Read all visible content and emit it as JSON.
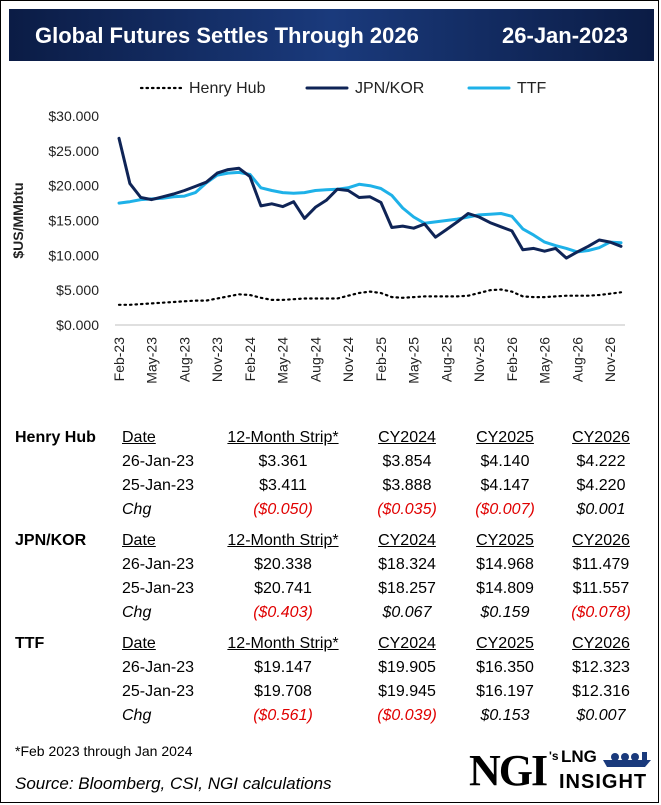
{
  "header": {
    "title": "Global Futures Settles Through 2026",
    "date": "26-Jan-2023"
  },
  "colors": {
    "henry_hub": "#000000",
    "jpn_kor": "#0f2456",
    "ttf": "#1eb1e8",
    "negative": "#e00000",
    "header_bg": "#0f2456"
  },
  "chart_data": {
    "type": "line",
    "title": "",
    "xlabel": "",
    "ylabel": "$US/MMbtu",
    "ylim": [
      0,
      30
    ],
    "y_ticks": [
      "$0.000",
      "$5.000",
      "$10.000",
      "$15.000",
      "$20.000",
      "$25.000",
      "$30.000"
    ],
    "x": [
      "Feb-23",
      "Mar-23",
      "Apr-23",
      "May-23",
      "Jun-23",
      "Jul-23",
      "Aug-23",
      "Sep-23",
      "Oct-23",
      "Nov-23",
      "Dec-23",
      "Jan-24",
      "Feb-24",
      "Mar-24",
      "Apr-24",
      "May-24",
      "Jun-24",
      "Jul-24",
      "Aug-24",
      "Sep-24",
      "Oct-24",
      "Nov-24",
      "Dec-24",
      "Jan-25",
      "Feb-25",
      "Mar-25",
      "Apr-25",
      "May-25",
      "Jun-25",
      "Jul-25",
      "Aug-25",
      "Sep-25",
      "Oct-25",
      "Nov-25",
      "Dec-25",
      "Jan-26",
      "Feb-26",
      "Mar-26",
      "Apr-26",
      "May-26",
      "Jun-26",
      "Jul-26",
      "Aug-26",
      "Sep-26",
      "Oct-26",
      "Nov-26",
      "Dec-26"
    ],
    "x_tick_labels": [
      "Feb-23",
      "May-23",
      "Aug-23",
      "Nov-23",
      "Feb-24",
      "May-24",
      "Aug-24",
      "Nov-24",
      "Feb-25",
      "May-25",
      "Aug-25",
      "Nov-25",
      "Feb-26",
      "May-26",
      "Aug-26",
      "Nov-26"
    ],
    "legend": [
      "Henry Hub",
      "JPN/KOR",
      "TTF"
    ],
    "legend_position": "top",
    "series": [
      {
        "name": "Henry Hub",
        "style": "dotted",
        "values": [
          2.9,
          2.9,
          3.0,
          3.1,
          3.2,
          3.3,
          3.4,
          3.5,
          3.5,
          3.8,
          4.1,
          4.4,
          4.3,
          3.9,
          3.6,
          3.6,
          3.7,
          3.8,
          3.8,
          3.8,
          3.8,
          4.2,
          4.6,
          4.8,
          4.6,
          4.0,
          3.9,
          4.0,
          4.1,
          4.1,
          4.1,
          4.1,
          4.2,
          4.6,
          5.0,
          5.1,
          4.8,
          4.1,
          4.0,
          4.0,
          4.1,
          4.2,
          4.2,
          4.2,
          4.3,
          4.5,
          4.7
        ]
      },
      {
        "name": "JPN/KOR",
        "style": "solid",
        "values": [
          26.8,
          20.3,
          18.3,
          18.0,
          18.4,
          18.8,
          19.3,
          19.9,
          20.5,
          21.8,
          22.3,
          22.5,
          21.3,
          17.1,
          17.4,
          17.0,
          17.7,
          15.3,
          16.9,
          17.9,
          19.5,
          19.3,
          18.3,
          18.4,
          17.6,
          14.0,
          14.2,
          13.9,
          14.5,
          12.6,
          13.7,
          14.8,
          16.0,
          15.5,
          14.7,
          14.1,
          13.5,
          10.8,
          11.0,
          10.6,
          11.0,
          9.6,
          10.5,
          11.3,
          12.2,
          11.9,
          11.3
        ]
      },
      {
        "name": "TTF",
        "style": "solid",
        "values": [
          17.5,
          17.7,
          18.0,
          18.1,
          18.2,
          18.4,
          18.5,
          19.0,
          20.4,
          21.5,
          21.8,
          21.9,
          21.6,
          19.7,
          19.3,
          19.0,
          18.9,
          19.0,
          19.3,
          19.4,
          19.5,
          19.7,
          20.2,
          20.0,
          19.6,
          18.6,
          16.8,
          15.5,
          14.6,
          14.8,
          15.0,
          15.2,
          15.5,
          15.8,
          15.9,
          16.0,
          15.6,
          13.8,
          12.9,
          11.9,
          11.4,
          11.0,
          10.5,
          10.7,
          11.1,
          11.9,
          11.8
        ]
      }
    ]
  },
  "tables": [
    {
      "name": "Henry Hub",
      "headers": [
        "Date",
        "12-Month Strip*",
        "CY2024",
        "CY2025",
        "CY2026"
      ],
      "rows": [
        {
          "label": "26-Jan-23",
          "values": [
            "$3.361",
            "$3.854",
            "$4.140",
            "$4.222"
          ]
        },
        {
          "label": "25-Jan-23",
          "values": [
            "$3.411",
            "$3.888",
            "$4.147",
            "$4.220"
          ]
        }
      ],
      "chg_label": "Chg",
      "chg": [
        "($0.050)",
        "($0.035)",
        "($0.007)",
        "$0.001"
      ]
    },
    {
      "name": "JPN/KOR",
      "headers": [
        "Date",
        "12-Month Strip*",
        "CY2024",
        "CY2025",
        "CY2026"
      ],
      "rows": [
        {
          "label": "26-Jan-23",
          "values": [
            "$20.338",
            "$18.324",
            "$14.968",
            "$11.479"
          ]
        },
        {
          "label": "25-Jan-23",
          "values": [
            "$20.741",
            "$18.257",
            "$14.809",
            "$11.557"
          ]
        }
      ],
      "chg_label": "Chg",
      "chg": [
        "($0.403)",
        "$0.067",
        "$0.159",
        "($0.078)"
      ]
    },
    {
      "name": "TTF",
      "headers": [
        "Date",
        "12-Month Strip*",
        "CY2024",
        "CY2025",
        "CY2026"
      ],
      "rows": [
        {
          "label": "26-Jan-23",
          "values": [
            "$19.147",
            "$19.905",
            "$16.350",
            "$12.323"
          ]
        },
        {
          "label": "25-Jan-23",
          "values": [
            "$19.708",
            "$19.945",
            "$16.197",
            "$12.316"
          ]
        }
      ],
      "chg_label": "Chg",
      "chg": [
        "($0.561)",
        "($0.039)",
        "$0.153",
        "$0.007"
      ]
    }
  ],
  "footnote": "*Feb 2023 through Jan 2024",
  "source": "Source: Bloomberg, CSI, NGI calculations",
  "logo": {
    "ngi": "NGI",
    "apostrophe_s": "'s",
    "lng": "LNG",
    "insight": "INSIGHT"
  }
}
